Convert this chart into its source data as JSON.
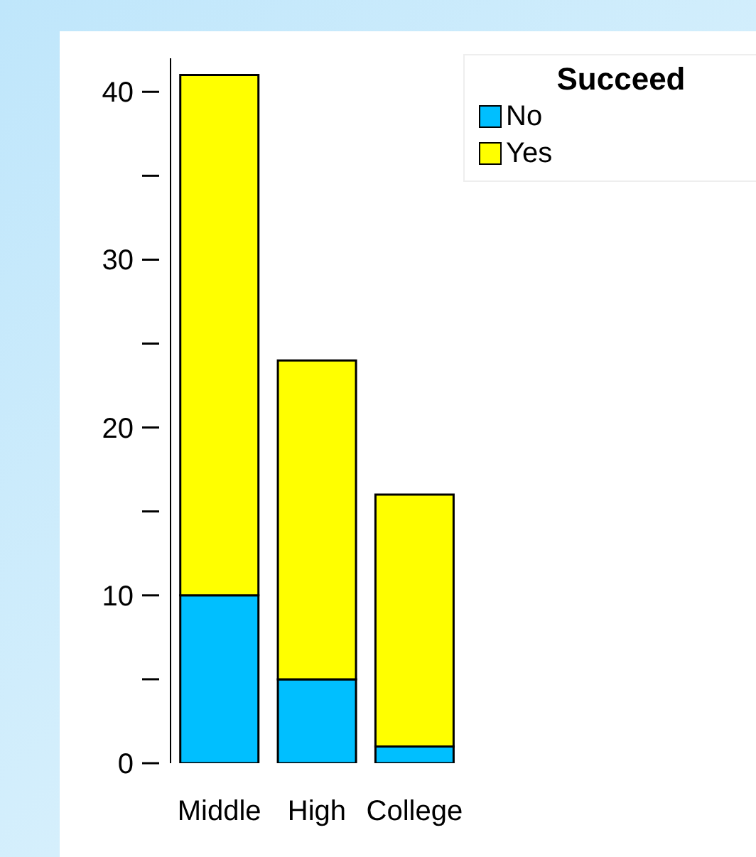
{
  "chart_data": {
    "type": "bar",
    "stacked": true,
    "legend_title": "Succeed",
    "categories": [
      "Middle",
      "High",
      "College"
    ],
    "series": [
      {
        "name": "No",
        "color": "#00bfff",
        "values": [
          10,
          5,
          1
        ]
      },
      {
        "name": "Yes",
        "color": "#ffff00",
        "values": [
          31,
          19,
          15
        ]
      }
    ],
    "ylim": [
      0,
      42
    ],
    "yticks": [
      0,
      {
        "value": 5,
        "label": null
      },
      10,
      {
        "value": 15,
        "label": null
      },
      20,
      {
        "value": 25,
        "label": null
      },
      30,
      {
        "value": 35,
        "label": null
      },
      40
    ],
    "grid": false,
    "legend": "top right"
  }
}
